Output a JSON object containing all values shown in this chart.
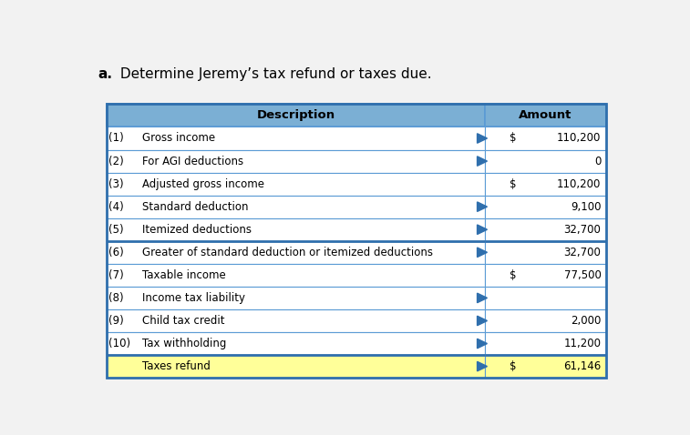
{
  "title_bold": "a.",
  "title_rest": " Determine Jeremy’s tax refund or taxes due.",
  "header": [
    "Description",
    "Amount"
  ],
  "rows": [
    {
      "num": "(1)",
      "desc": "Gross income",
      "dollar": "$",
      "amount": "110,200",
      "has_arrow": true,
      "bold_top": false,
      "yellow_bg": false
    },
    {
      "num": "(2)",
      "desc": "For AGI deductions",
      "dollar": "",
      "amount": "0",
      "has_arrow": true,
      "bold_top": false,
      "yellow_bg": false
    },
    {
      "num": "(3)",
      "desc": "Adjusted gross income",
      "dollar": "$",
      "amount": "110,200",
      "has_arrow": false,
      "bold_top": false,
      "yellow_bg": false
    },
    {
      "num": "(4)",
      "desc": "Standard deduction",
      "dollar": "",
      "amount": "9,100",
      "has_arrow": true,
      "bold_top": false,
      "yellow_bg": false
    },
    {
      "num": "(5)",
      "desc": "Itemized deductions",
      "dollar": "",
      "amount": "32,700",
      "has_arrow": true,
      "bold_top": false,
      "yellow_bg": false
    },
    {
      "num": "(6)",
      "desc": "Greater of standard deduction or itemized deductions",
      "dollar": "",
      "amount": "32,700",
      "has_arrow": true,
      "bold_top": true,
      "yellow_bg": false
    },
    {
      "num": "(7)",
      "desc": "Taxable income",
      "dollar": "$",
      "amount": "77,500",
      "has_arrow": false,
      "bold_top": false,
      "yellow_bg": false
    },
    {
      "num": "(8)",
      "desc": "Income tax liability",
      "dollar": "",
      "amount": "",
      "has_arrow": true,
      "bold_top": false,
      "yellow_bg": false
    },
    {
      "num": "(9)",
      "desc": "Child tax credit",
      "dollar": "",
      "amount": "2,000",
      "has_arrow": true,
      "bold_top": false,
      "yellow_bg": false
    },
    {
      "num": "(10)",
      "desc": "Tax withholding",
      "dollar": "",
      "amount": "11,200",
      "has_arrow": true,
      "bold_top": false,
      "yellow_bg": false
    },
    {
      "num": "",
      "desc": "Taxes refund",
      "dollar": "$",
      "amount": "61,146",
      "has_arrow": true,
      "bold_top": true,
      "yellow_bg": true
    }
  ],
  "header_bg": "#7BAFD4",
  "row_bg": "#FFFFFF",
  "last_row_bg": "#FFFF99",
  "border_color": "#5B9BD5",
  "bold_border_color": "#2F6FAD",
  "text_color": "#000000",
  "arrow_color": "#2F6FAD",
  "fig_bg": "#F2F2F2"
}
